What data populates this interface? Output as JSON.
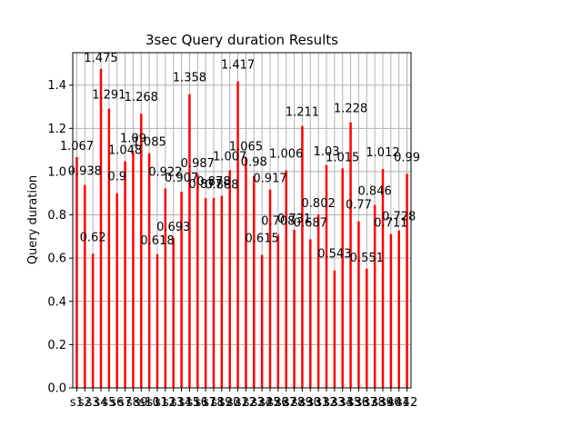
{
  "chart_data": {
    "type": "bar",
    "title": "3sec Query duration Results",
    "xlabel": "",
    "ylabel": "Query duration",
    "ylim": [
      0,
      1.55
    ],
    "yticks": [
      "0.0",
      "0.2",
      "0.4",
      "0.6",
      "0.8",
      "1.0",
      "1.2",
      "1.4"
    ],
    "grid": true,
    "bar_color": "#ff0000",
    "categories": [
      "s1",
      "s2",
      "s3",
      "s4",
      "s5",
      "s6",
      "s7",
      "s8",
      "s9",
      "s10",
      "s11",
      "s12",
      "s13",
      "s14",
      "s15",
      "s16",
      "s17",
      "s18",
      "s19",
      "s20",
      "s21",
      "s22",
      "s23",
      "s24",
      "s25",
      "s26",
      "s27",
      "s28",
      "s29",
      "s30",
      "s31",
      "s32",
      "s33",
      "s34",
      "s35",
      "s36",
      "s37",
      "s38",
      "s39",
      "s40",
      "s41",
      "s42"
    ],
    "values": [
      1.067,
      0.938,
      0.62,
      1.475,
      1.291,
      0.9,
      1.048,
      1.09,
      1.268,
      1.085,
      0.618,
      0.922,
      0.693,
      0.907,
      1.358,
      0.987,
      0.877,
      0.878,
      0.888,
      1.007,
      1.417,
      1.065,
      0.98,
      0.615,
      0.917,
      0.708,
      1.006,
      0.731,
      1.211,
      0.687,
      0.802,
      1.03,
      0.543,
      1.015,
      1.228,
      0.77,
      0.551,
      0.846,
      1.012,
      0.711,
      0.728,
      0.99
    ]
  }
}
